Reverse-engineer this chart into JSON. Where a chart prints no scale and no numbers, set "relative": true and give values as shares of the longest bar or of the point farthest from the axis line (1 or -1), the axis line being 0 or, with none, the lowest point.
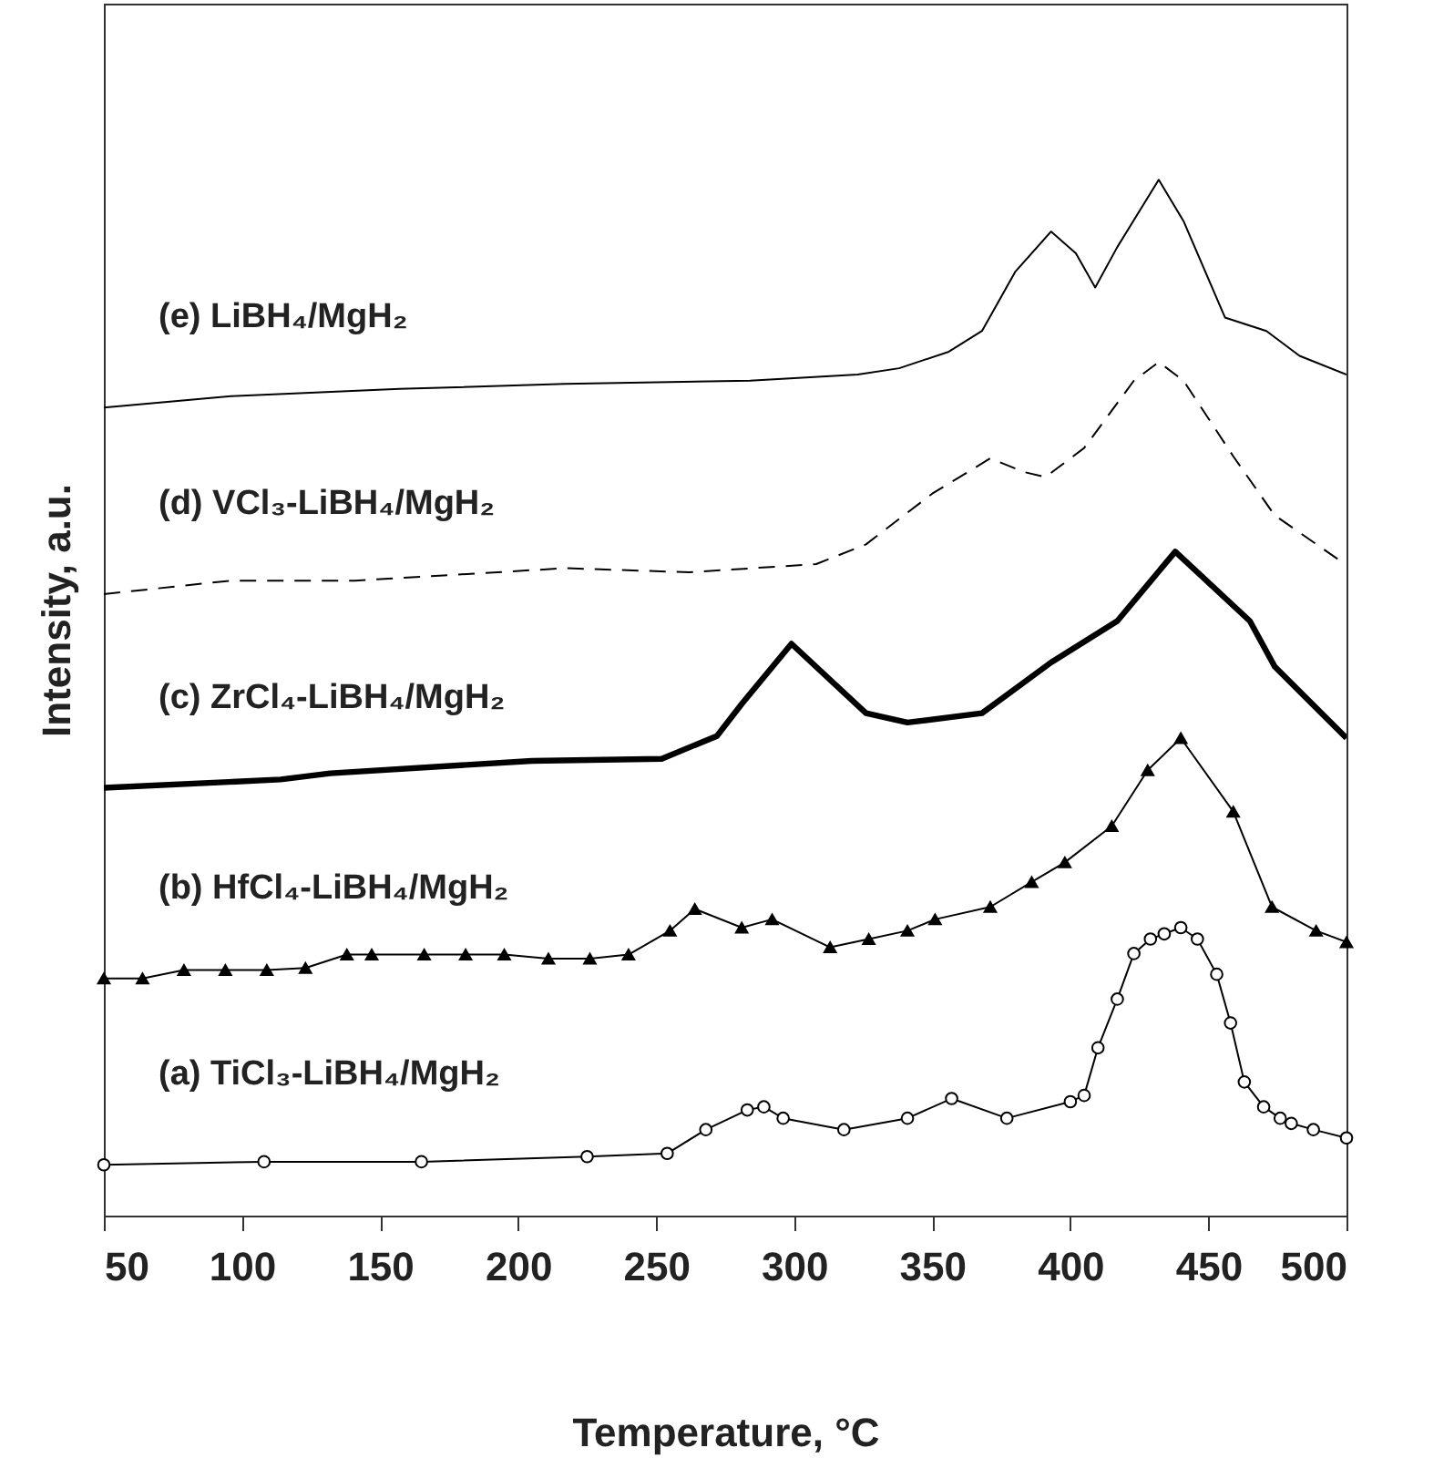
{
  "chart_data": {
    "type": "line",
    "xlabel": "Temperature, °C",
    "ylabel": "Intensity, a.u.",
    "relative": true,
    "xlim": [
      50,
      500
    ],
    "xticks": [
      50,
      100,
      150,
      200,
      250,
      300,
      350,
      400,
      450,
      500
    ],
    "grid": false,
    "series": [
      {
        "name": "(a) TiCl₃-LiBH₄/MgH₂",
        "color": "#000000",
        "marker": "circle",
        "line_style": "solid",
        "x": [
          50,
          108,
          165,
          225,
          254,
          268,
          283,
          289,
          296,
          318,
          341,
          357,
          377,
          400,
          405,
          410,
          417,
          423,
          429,
          434,
          440,
          446,
          453,
          458,
          463,
          470,
          476,
          480,
          488,
          500
        ],
        "values": [
          0.049,
          0.052,
          0.052,
          0.057,
          0.06,
          0.083,
          0.102,
          0.105,
          0.094,
          0.083,
          0.094,
          0.113,
          0.094,
          0.11,
          0.116,
          0.162,
          0.209,
          0.253,
          0.267,
          0.272,
          0.278,
          0.267,
          0.233,
          0.186,
          0.129,
          0.105,
          0.094,
          0.089,
          0.083,
          0.075
        ]
      },
      {
        "name": "(b) HfCl₄-LiBH₄/MgH₂",
        "color": "#000000",
        "marker": "triangle",
        "line_style": "solid",
        "x": [
          50,
          64,
          79,
          94,
          109,
          123,
          138,
          147,
          166,
          181,
          195,
          211,
          226,
          240,
          255,
          264,
          281,
          292,
          313,
          327,
          341,
          351,
          371,
          386,
          398,
          415,
          428,
          440,
          459,
          473,
          489,
          500
        ],
        "values": [
          0.229,
          0.229,
          0.237,
          0.237,
          0.237,
          0.239,
          0.252,
          0.252,
          0.252,
          0.252,
          0.252,
          0.248,
          0.248,
          0.252,
          0.275,
          0.296,
          0.278,
          0.286,
          0.259,
          0.267,
          0.275,
          0.286,
          0.298,
          0.322,
          0.341,
          0.376,
          0.43,
          0.461,
          0.39,
          0.298,
          0.275,
          0.264
        ]
      },
      {
        "name": "(c) ZrCl₄-LiBH₄/MgH₂",
        "color": "#000000",
        "marker": "none",
        "line_style": "solid",
        "x": [
          50,
          114,
          132,
          205,
          252,
          272,
          281,
          299,
          326,
          341,
          368,
          393,
          417,
          438,
          465,
          474,
          500
        ],
        "values": [
          0.413,
          0.421,
          0.427,
          0.439,
          0.441,
          0.463,
          0.494,
          0.552,
          0.485,
          0.476,
          0.485,
          0.534,
          0.574,
          0.641,
          0.574,
          0.53,
          0.461
        ]
      },
      {
        "name": "(d) VCl₃-LiBH₄/MgH₂",
        "color": "#000000",
        "marker": "none",
        "line_style": "dashed",
        "x": [
          50,
          96,
          141,
          217,
          262,
          308,
          326,
          350,
          371,
          383,
          391,
          405,
          423,
          432,
          441,
          459,
          474,
          500
        ],
        "values": [
          0.6,
          0.613,
          0.613,
          0.625,
          0.621,
          0.629,
          0.648,
          0.697,
          0.731,
          0.718,
          0.713,
          0.741,
          0.806,
          0.824,
          0.806,
          0.733,
          0.676,
          0.628
        ]
      },
      {
        "name": "(e) LiBH₄/MgH₂",
        "color": "#000000",
        "marker": "none",
        "line_style": "solid",
        "x": [
          50,
          96,
          157,
          217,
          284,
          323,
          338,
          356,
          368,
          380,
          393,
          402,
          409,
          417,
          432,
          441,
          456,
          471,
          483,
          500
        ],
        "values": [
          0.78,
          0.791,
          0.798,
          0.803,
          0.806,
          0.812,
          0.818,
          0.834,
          0.854,
          0.911,
          0.95,
          0.929,
          0.896,
          0.935,
          1.0,
          0.96,
          0.867,
          0.854,
          0.83,
          0.812
        ]
      }
    ]
  }
}
